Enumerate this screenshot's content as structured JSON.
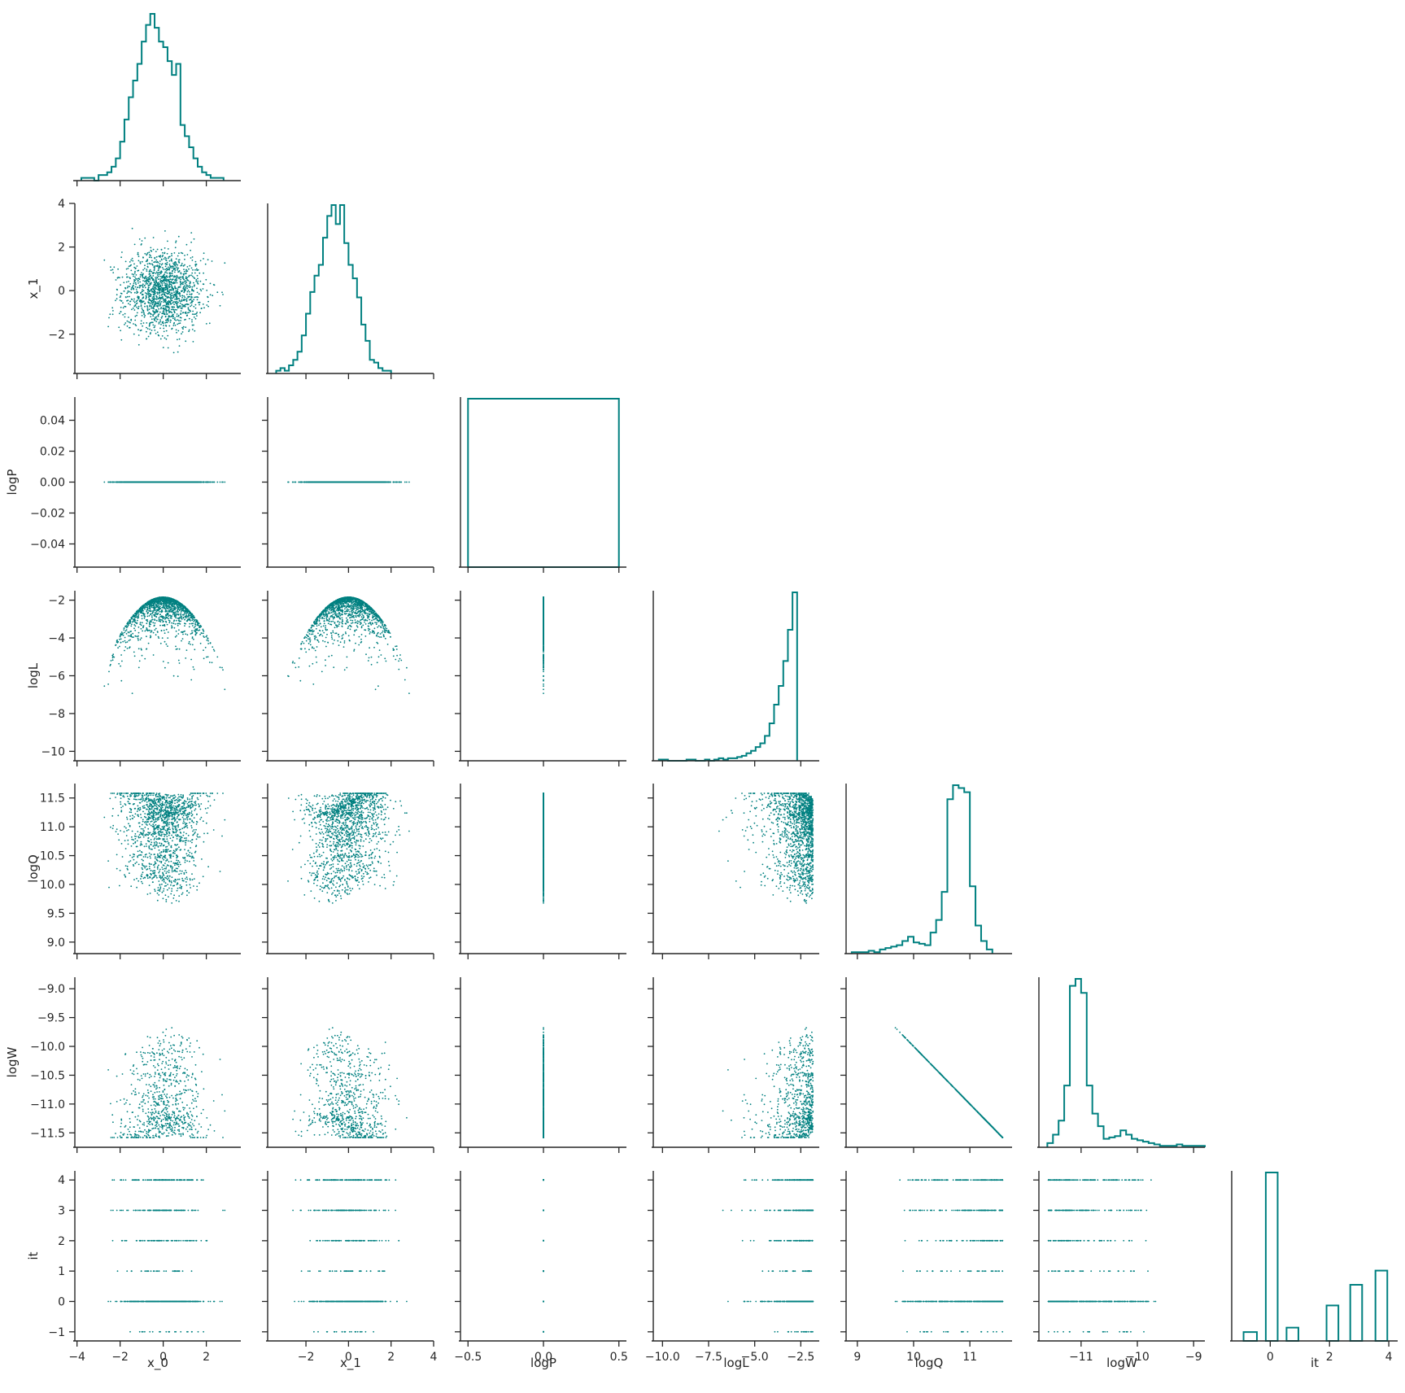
{
  "chart_data": {
    "type": "pairplot-corner",
    "color": "#008080",
    "variables": [
      "x_0",
      "x_1",
      "logP",
      "logL",
      "logQ",
      "logW",
      "it"
    ],
    "axes": {
      "x_0": {
        "label": "x_0",
        "range": [
          -4.1,
          3.6
        ],
        "ticks": [
          "-4",
          "-2",
          "0",
          "2"
        ],
        "tick_values": [
          -4,
          -2,
          0,
          2
        ]
      },
      "x_1": {
        "label": "x_1",
        "range": [
          -3.8,
          4.0
        ],
        "ticks": [
          "-2",
          "0",
          "2",
          "4"
        ],
        "tick_values": [
          -2,
          0,
          2,
          4
        ]
      },
      "logP": {
        "label": "logP",
        "range": [
          -0.055,
          0.055
        ],
        "ticks": [
          "0.04",
          "0.02",
          "0.00",
          "-0.02",
          "-0.04"
        ],
        "tick_values": [
          0.04,
          0.02,
          0.0,
          -0.02,
          -0.04
        ]
      },
      "logP_x": {
        "label": "logP",
        "range": [
          -0.55,
          0.55
        ],
        "ticks": [
          "-0.5",
          "0.0",
          "0.5"
        ],
        "tick_values": [
          -0.5,
          0.0,
          0.5
        ]
      },
      "logL": {
        "label": "logL",
        "range": [
          -10.5,
          -1.5
        ],
        "ticks": [
          "-10.0",
          "-7.5",
          "-5.0",
          "-2.5"
        ],
        "y_ticks": [
          "-2",
          "-4",
          "-6",
          "-8",
          "-10"
        ],
        "tick_values": [
          -10,
          -7.5,
          -5,
          -2.5
        ],
        "y_tick_values": [
          -2,
          -4,
          -6,
          -8,
          -10
        ]
      },
      "logQ": {
        "label": "logQ",
        "range": [
          8.8,
          11.75
        ],
        "ticks": [
          "9",
          "10",
          "11"
        ],
        "y_ticks": [
          "11.5",
          "11.0",
          "10.5",
          "10.0",
          "9.5",
          "9.0"
        ],
        "tick_values": [
          9,
          10,
          11
        ],
        "y_tick_values": [
          11.5,
          11.0,
          10.5,
          10.0,
          9.5,
          9.0
        ]
      },
      "logW": {
        "label": "logW",
        "range": [
          -11.75,
          -8.8
        ],
        "ticks": [
          "-11",
          "-10",
          "-9"
        ],
        "y_ticks": [
          "-9.0",
          "-9.5",
          "-10.0",
          "-10.5",
          "-11.0",
          "-11.5"
        ],
        "tick_values": [
          -11,
          -10,
          -9
        ],
        "y_tick_values": [
          -9.0,
          -9.5,
          -10.0,
          -10.5,
          -11.0,
          -11.5
        ]
      },
      "it": {
        "label": "it",
        "range": [
          -1.3,
          4.3
        ],
        "ticks": [
          "0",
          "2",
          "4"
        ],
        "y_ticks": [
          "4",
          "3",
          "2",
          "1",
          "0",
          "-1"
        ],
        "tick_values": [
          0,
          2,
          4
        ],
        "y_tick_values": [
          4,
          3,
          2,
          1,
          0,
          -1
        ]
      },
      "x_1_y": {
        "y_ticks": [
          "4",
          "2",
          "0",
          "-2"
        ],
        "y_tick_values": [
          4,
          2,
          0,
          -2
        ]
      }
    },
    "histograms": {
      "x_0": {
        "edges_start": -3.8,
        "bin_width": 0.2,
        "counts": [
          1,
          1,
          1,
          0,
          2,
          2,
          3,
          5,
          8,
          14,
          22,
          30,
          36,
          42,
          50,
          56,
          60,
          55,
          50,
          48,
          43,
          38,
          42,
          20,
          16,
          12,
          8,
          5,
          3,
          2,
          1,
          1,
          1
        ]
      },
      "x_1": {
        "edges_start": -3.4,
        "bin_width": 0.2,
        "counts": [
          1,
          2,
          1,
          3,
          5,
          8,
          14,
          22,
          30,
          36,
          40,
          50,
          58,
          62,
          55,
          62,
          48,
          40,
          35,
          28,
          18,
          12,
          5,
          4,
          2,
          1,
          1
        ]
      },
      "logP": {
        "bins": [
          [
            -0.5,
            0.5,
            1
          ]
        ]
      },
      "logL": {
        "edges_start": -10.2,
        "bin_width": 0.25,
        "counts": [
          1,
          1,
          0,
          0,
          0,
          0,
          1,
          1,
          0,
          0,
          1,
          0,
          1,
          2,
          1,
          2,
          2,
          3,
          4,
          6,
          8,
          11,
          14,
          20,
          30,
          45,
          60,
          80,
          105,
          135
        ]
      },
      "logQ": {
        "edges_start": 8.9,
        "bin_width": 0.1,
        "counts": [
          1,
          1,
          1,
          2,
          1,
          3,
          4,
          5,
          6,
          9,
          12,
          8,
          7,
          6,
          15,
          24,
          44,
          110,
          120,
          118,
          115,
          48,
          20,
          9,
          3
        ]
      },
      "logW": {
        "edges_start": -11.6,
        "bin_width": 0.1,
        "counts": [
          3,
          9,
          19,
          44,
          115,
          120,
          110,
          44,
          24,
          15,
          6,
          7,
          8,
          12,
          9,
          6,
          5,
          4,
          3,
          2,
          1,
          1,
          1,
          2,
          1,
          1,
          1,
          1
        ]
      },
      "it": {
        "bins": [
          [
            -0.9,
            -0.45,
            30
          ],
          [
            -0.15,
            0.25,
            570
          ],
          [
            0.55,
            0.95,
            45
          ],
          [
            1.9,
            2.3,
            120
          ],
          [
            2.7,
            3.1,
            190
          ],
          [
            3.55,
            3.95,
            238
          ]
        ]
      }
    }
  }
}
